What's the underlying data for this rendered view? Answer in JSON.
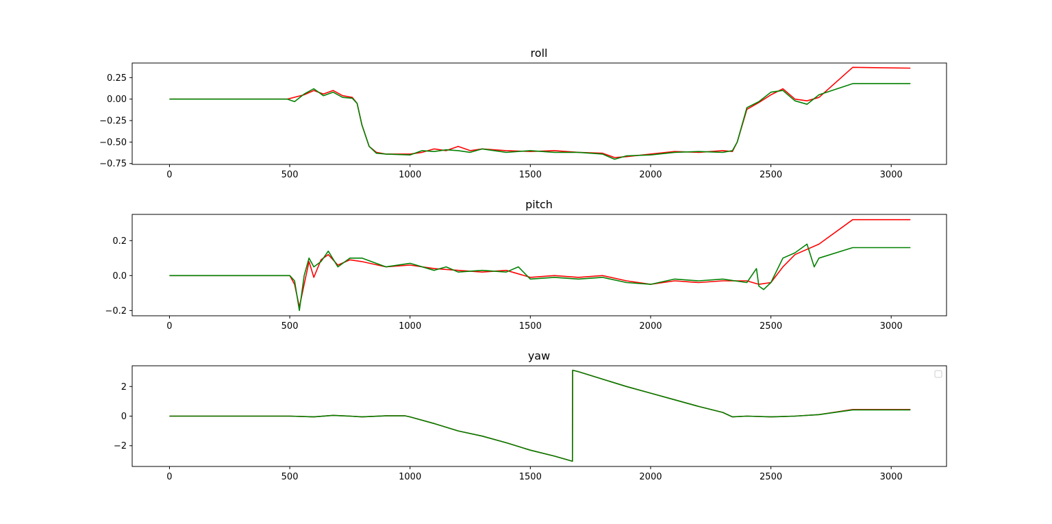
{
  "chart_data": [
    {
      "type": "line",
      "title": "roll",
      "xlim": [
        -155,
        3230
      ],
      "ylim": [
        -0.76,
        0.42
      ],
      "xticks": [
        0,
        500,
        1000,
        1500,
        2000,
        2500,
        3000
      ],
      "xtick_labels": [
        "0",
        "500",
        "1000",
        "1500",
        "2000",
        "2500",
        "3000"
      ],
      "yticks": [
        0.25,
        0,
        -0.25,
        -0.5,
        -0.75
      ],
      "ytick_labels": [
        "0.25",
        "0.00",
        "−0.25",
        "−0.50",
        "−0.75"
      ],
      "grid": false,
      "series": [
        {
          "color": "#ff0000",
          "x": [
            0,
            300,
            490,
            560,
            600,
            640,
            680,
            720,
            760,
            780,
            800,
            830,
            860,
            900,
            1000,
            1050,
            1100,
            1150,
            1200,
            1250,
            1300,
            1400,
            1500,
            1600,
            1700,
            1800,
            1850,
            1900,
            2000,
            2100,
            2200,
            2300,
            2340,
            2360,
            2400,
            2450,
            2500,
            2550,
            2600,
            2650,
            2700,
            2840,
            3080
          ],
          "y": [
            0,
            0,
            0,
            0.05,
            0.1,
            0.06,
            0.1,
            0.04,
            0.02,
            -0.05,
            -0.3,
            -0.55,
            -0.62,
            -0.64,
            -0.64,
            -0.62,
            -0.58,
            -0.6,
            -0.55,
            -0.6,
            -0.58,
            -0.6,
            -0.61,
            -0.6,
            -0.62,
            -0.63,
            -0.68,
            -0.67,
            -0.64,
            -0.61,
            -0.62,
            -0.6,
            -0.61,
            -0.5,
            -0.12,
            -0.04,
            0.05,
            0.12,
            0.0,
            -0.02,
            0.02,
            0.37,
            0.36
          ]
        },
        {
          "color": "#008000",
          "x": [
            0,
            300,
            490,
            520,
            560,
            600,
            640,
            680,
            720,
            760,
            780,
            800,
            830,
            860,
            900,
            1000,
            1050,
            1100,
            1150,
            1200,
            1250,
            1300,
            1400,
            1500,
            1600,
            1700,
            1800,
            1850,
            1900,
            2000,
            2100,
            2200,
            2300,
            2340,
            2360,
            2400,
            2450,
            2500,
            2550,
            2600,
            2650,
            2700,
            2840,
            3080
          ],
          "y": [
            0,
            0,
            0,
            -0.03,
            0.06,
            0.12,
            0.04,
            0.08,
            0.02,
            0.01,
            -0.05,
            -0.3,
            -0.55,
            -0.63,
            -0.64,
            -0.65,
            -0.6,
            -0.61,
            -0.59,
            -0.6,
            -0.62,
            -0.58,
            -0.62,
            -0.6,
            -0.62,
            -0.62,
            -0.64,
            -0.7,
            -0.66,
            -0.65,
            -0.62,
            -0.61,
            -0.62,
            -0.6,
            -0.5,
            -0.1,
            -0.03,
            0.08,
            0.1,
            -0.02,
            -0.06,
            0.05,
            0.18,
            0.18
          ]
        }
      ]
    },
    {
      "type": "line",
      "title": "pitch",
      "xlim": [
        -155,
        3230
      ],
      "ylim": [
        -0.23,
        0.35
      ],
      "xticks": [
        0,
        500,
        1000,
        1500,
        2000,
        2500,
        3000
      ],
      "xtick_labels": [
        "0",
        "500",
        "1000",
        "1500",
        "2000",
        "2500",
        "3000"
      ],
      "yticks": [
        0.2,
        0,
        -0.2
      ],
      "ytick_labels": [
        "0.2",
        "0.0",
        "−0.2"
      ],
      "grid": false,
      "series": [
        {
          "color": "#ff0000",
          "x": [
            0,
            300,
            500,
            520,
            540,
            560,
            580,
            600,
            630,
            660,
            700,
            750,
            800,
            900,
            1000,
            1100,
            1200,
            1300,
            1400,
            1500,
            1600,
            1700,
            1800,
            1900,
            2000,
            2100,
            2200,
            2300,
            2400,
            2450,
            2500,
            2550,
            2600,
            2700,
            2840,
            3080
          ],
          "y": [
            0,
            0,
            0,
            -0.05,
            -0.18,
            -0.05,
            0.08,
            -0.01,
            0.09,
            0.12,
            0.06,
            0.09,
            0.08,
            0.05,
            0.06,
            0.04,
            0.03,
            0.02,
            0.03,
            -0.01,
            0.0,
            -0.01,
            0.0,
            -0.03,
            -0.05,
            -0.03,
            -0.04,
            -0.03,
            -0.03,
            -0.05,
            -0.04,
            0.05,
            0.12,
            0.18,
            0.32,
            0.32
          ]
        },
        {
          "color": "#008000",
          "x": [
            0,
            300,
            500,
            520,
            540,
            560,
            580,
            600,
            630,
            660,
            700,
            750,
            800,
            900,
            1000,
            1100,
            1150,
            1200,
            1300,
            1400,
            1450,
            1500,
            1600,
            1700,
            1800,
            1900,
            2000,
            2100,
            2200,
            2300,
            2400,
            2440,
            2450,
            2470,
            2500,
            2550,
            2600,
            2650,
            2680,
            2700,
            2840,
            3080
          ],
          "y": [
            0,
            0,
            0,
            -0.03,
            -0.2,
            0.0,
            0.1,
            0.05,
            0.08,
            0.14,
            0.05,
            0.1,
            0.1,
            0.05,
            0.07,
            0.03,
            0.05,
            0.02,
            0.03,
            0.02,
            0.05,
            -0.02,
            -0.01,
            -0.02,
            -0.01,
            -0.04,
            -0.05,
            -0.02,
            -0.03,
            -0.02,
            -0.04,
            0.04,
            -0.06,
            -0.08,
            -0.04,
            0.1,
            0.13,
            0.18,
            0.05,
            0.1,
            0.16,
            0.16
          ]
        }
      ]
    },
    {
      "type": "line",
      "title": "yaw",
      "xlim": [
        -155,
        3230
      ],
      "ylim": [
        -3.4,
        3.4
      ],
      "xticks": [
        0,
        500,
        1000,
        1500,
        2000,
        2500,
        3000
      ],
      "xtick_labels": [
        "0",
        "500",
        "1000",
        "1500",
        "2000",
        "2500",
        "3000"
      ],
      "yticks": [
        2,
        0,
        -2
      ],
      "ytick_labels": [
        "2",
        "0",
        "−2"
      ],
      "grid": false,
      "legend": "upper-right",
      "series": [
        {
          "color": "#ff0000",
          "x": [
            0,
            500,
            600,
            680,
            750,
            800,
            900,
            980,
            1000,
            1100,
            1200,
            1300,
            1400,
            1500,
            1600,
            1675,
            1676,
            1700,
            1800,
            1900,
            2000,
            2100,
            2200,
            2300,
            2340,
            2400,
            2500,
            2600,
            2700,
            2840,
            3080
          ],
          "y": [
            0,
            0,
            -0.05,
            0.05,
            0.0,
            -0.05,
            0.02,
            0.02,
            -0.05,
            -0.5,
            -1.0,
            -1.35,
            -1.8,
            -2.3,
            -2.7,
            -3.05,
            3.1,
            3.0,
            2.5,
            2.0,
            1.55,
            1.1,
            0.65,
            0.25,
            -0.05,
            0.0,
            -0.05,
            0.0,
            0.1,
            0.45,
            0.45
          ]
        },
        {
          "color": "#008000",
          "x": [
            0,
            500,
            600,
            680,
            750,
            800,
            900,
            980,
            1000,
            1100,
            1200,
            1300,
            1400,
            1500,
            1600,
            1675,
            1676,
            1700,
            1800,
            1900,
            2000,
            2100,
            2200,
            2300,
            2340,
            2400,
            2500,
            2600,
            2700,
            2840,
            3080
          ],
          "y": [
            0,
            0,
            -0.05,
            0.05,
            0.0,
            -0.05,
            0.02,
            0.02,
            -0.05,
            -0.5,
            -1.0,
            -1.35,
            -1.8,
            -2.3,
            -2.7,
            -3.05,
            3.1,
            3.0,
            2.5,
            2.0,
            1.55,
            1.1,
            0.65,
            0.25,
            -0.05,
            0.0,
            -0.05,
            0.0,
            0.1,
            0.42,
            0.42
          ]
        }
      ]
    }
  ]
}
